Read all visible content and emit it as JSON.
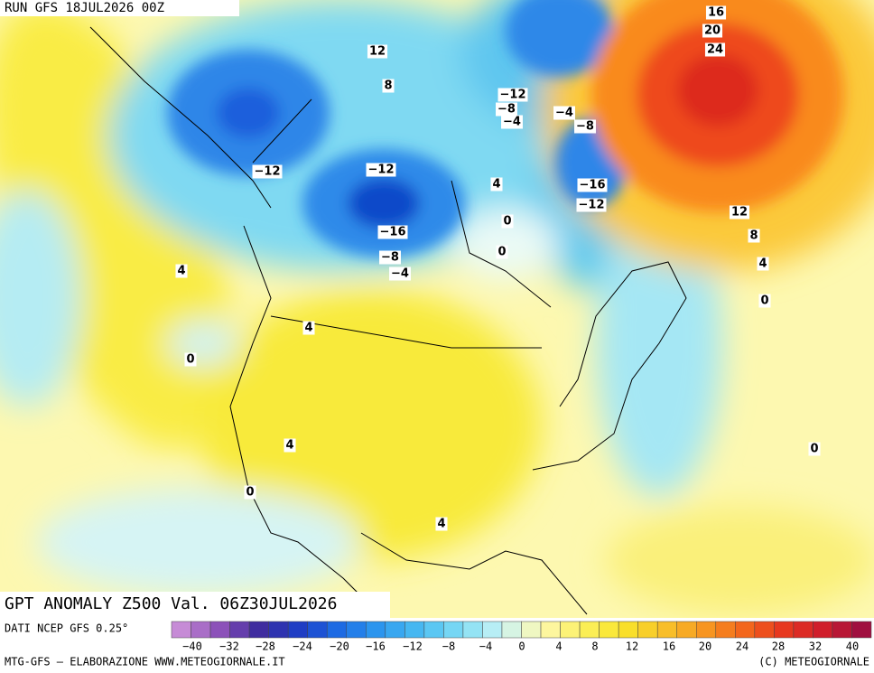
{
  "header": "RUN GFS 18JUL2026 00Z",
  "map_title": "GPT ANOMALY Z500 Val. 06Z30JUL2026",
  "source": "DATI NCEP GFS 0.25°",
  "footer_left": "MTG-GFS — ELABORAZIONE WWW.METEOGIORNALE.IT",
  "footer_right": "(C) METEOGIORNALE",
  "colorbar": {
    "ticks": [
      "−40",
      "−32",
      "−28",
      "−24",
      "−20",
      "−16",
      "−12",
      "−8",
      "−4",
      "0",
      "4",
      "8",
      "12",
      "16",
      "20",
      "24",
      "28",
      "32",
      "40"
    ]
  },
  "contour_labels": [
    "12",
    "8",
    "−12",
    "−8",
    "−4",
    "−4",
    "−8",
    "16",
    "20",
    "24",
    "−12",
    "−12",
    "4",
    "−16",
    "−12",
    "0",
    "−16",
    "0",
    "−8",
    "−4",
    "12",
    "8",
    "4",
    "0",
    "4",
    "4",
    "0",
    "4",
    "0",
    "0",
    "4"
  ]
}
